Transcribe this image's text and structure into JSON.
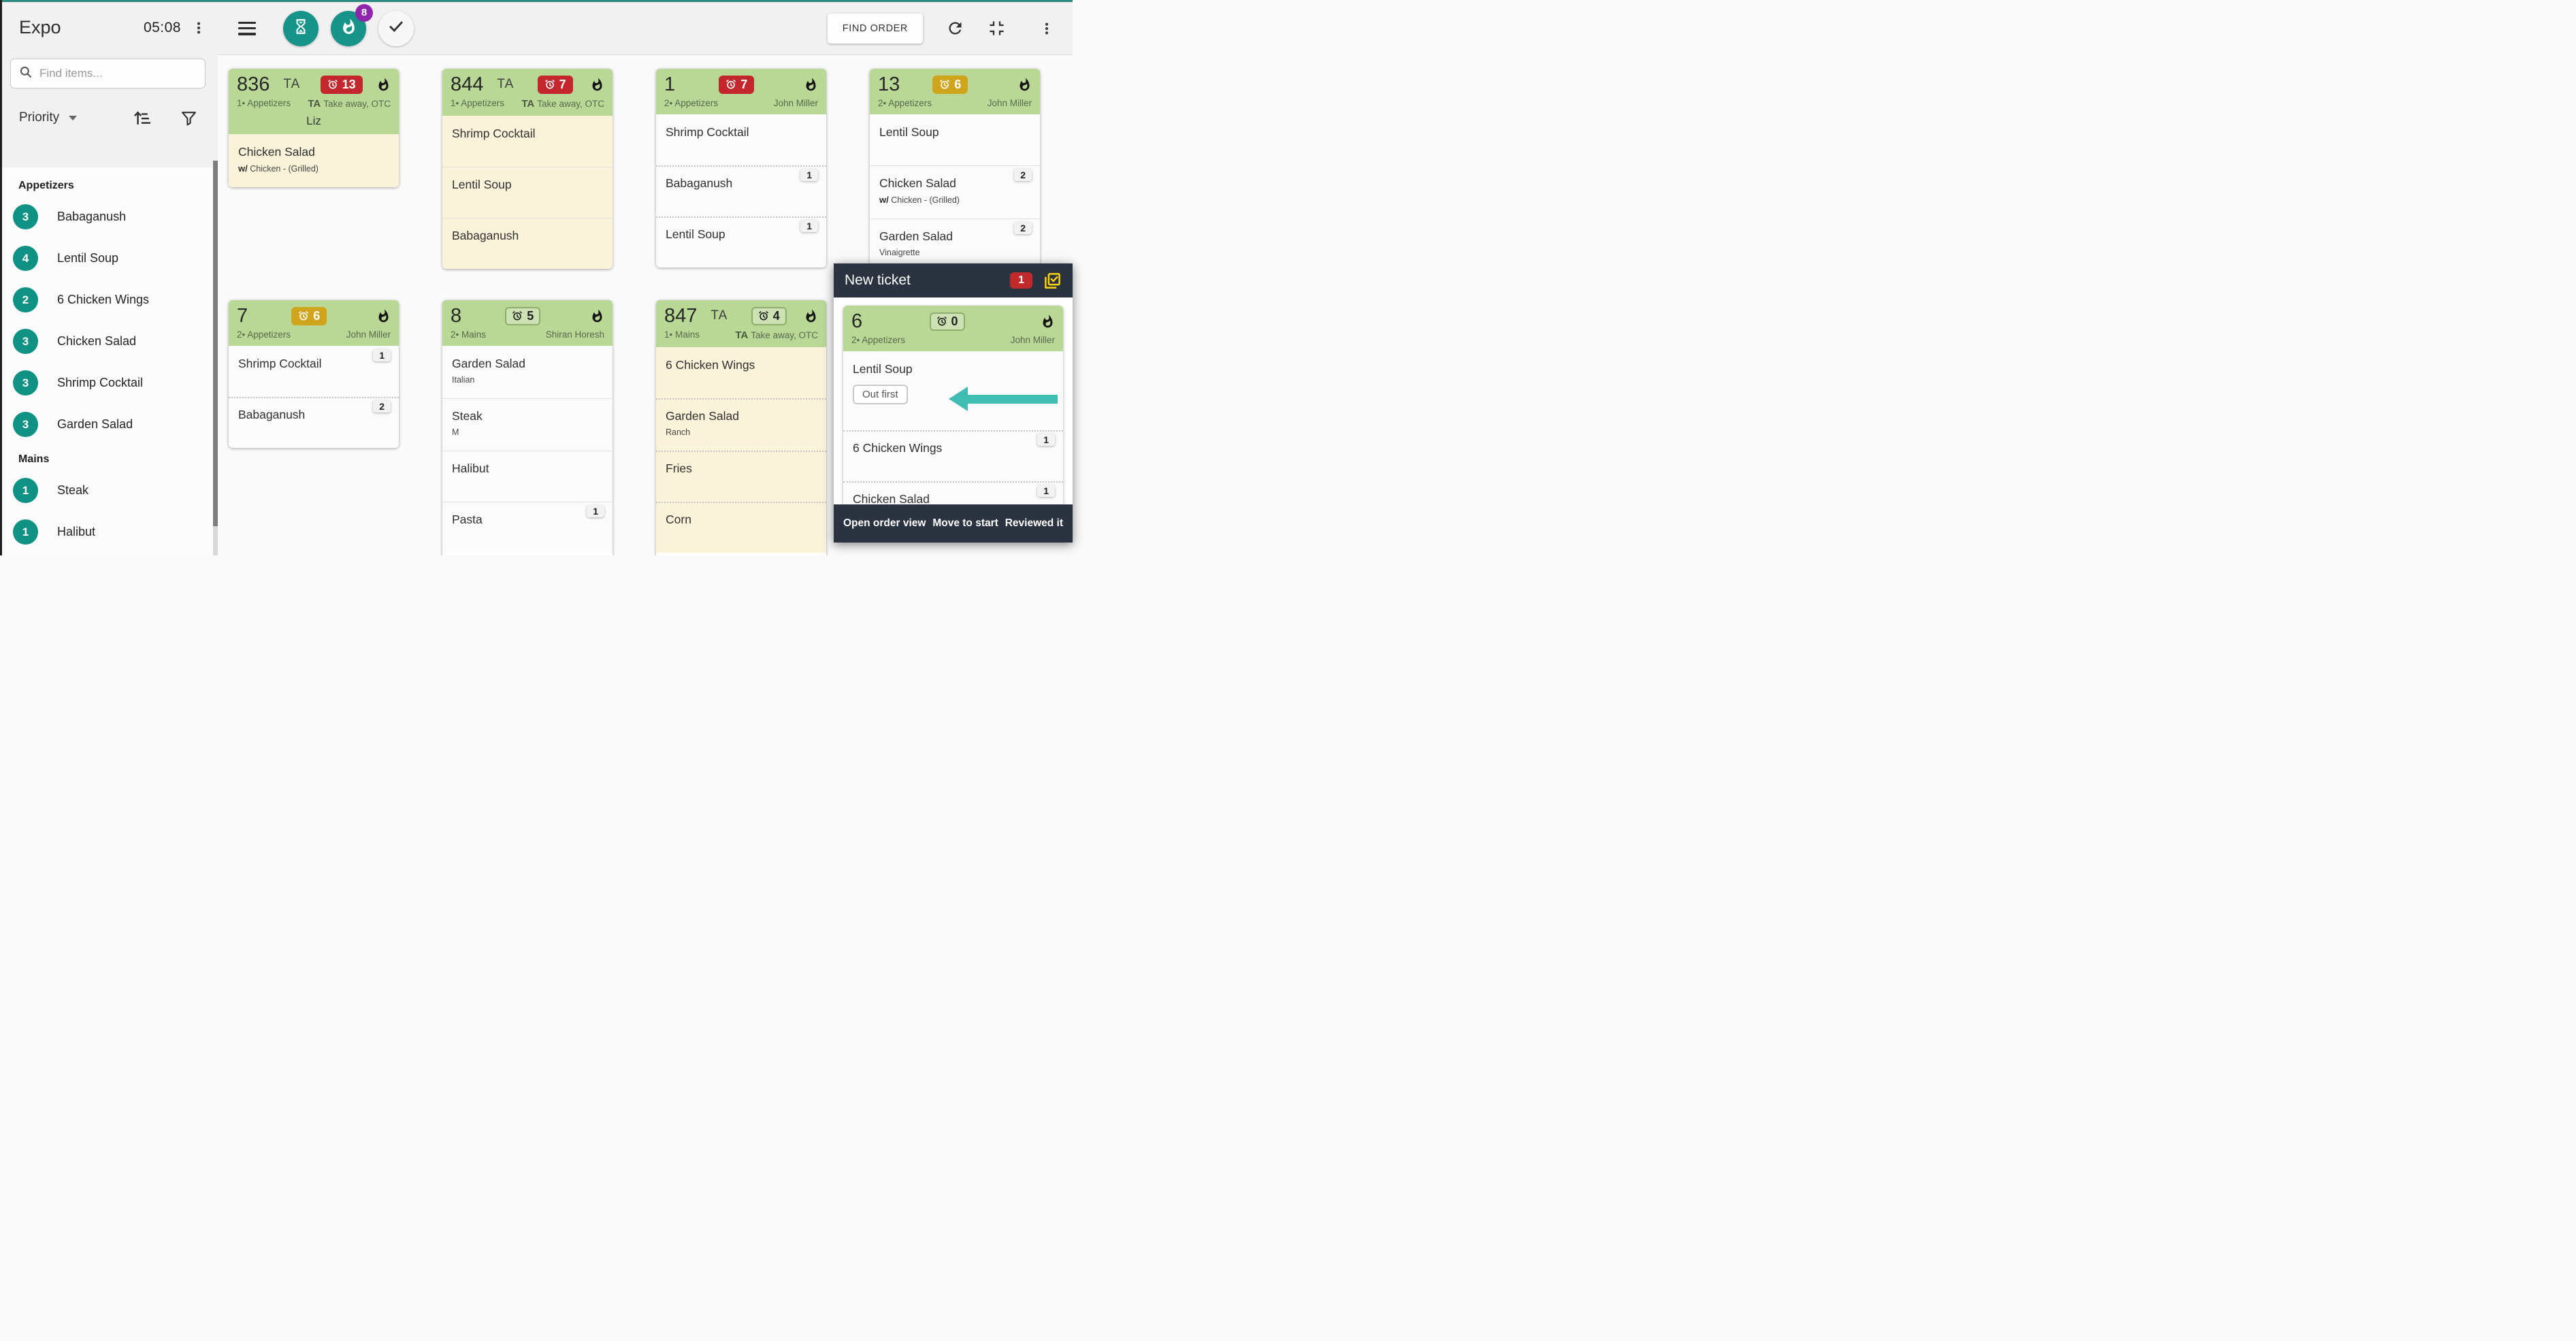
{
  "app": {
    "title": "Expo",
    "time": "05:08"
  },
  "colors": {
    "accent_teal": "#16948a",
    "top_border": "#2e8a7e",
    "arrow_teal": "#3fbdb2",
    "ticket_header_green": "#b9d795",
    "ticket_body_cream": "#faf3da",
    "timer_red": "#c3262c",
    "timer_gold": "#d0a41c",
    "panel_navy": "#2b3340",
    "panel_badge_red": "#c12a2a",
    "urgent_badge_purple": "#8f27ad",
    "check_icon_yellow": "#ffd60a"
  },
  "sidebar": {
    "search_placeholder": "Find items...",
    "sort_by": "Priority",
    "sections": [
      {
        "name": "Appetizers",
        "items": [
          {
            "count": "3",
            "label": "Babaganush"
          },
          {
            "count": "4",
            "label": "Lentil Soup"
          },
          {
            "count": "2",
            "label": "6 Chicken Wings"
          },
          {
            "count": "3",
            "label": "Chicken Salad"
          },
          {
            "count": "3",
            "label": "Shrimp Cocktail"
          },
          {
            "count": "3",
            "label": "Garden Salad"
          }
        ]
      },
      {
        "name": "Mains",
        "items": [
          {
            "count": "1",
            "label": "Steak"
          },
          {
            "count": "1",
            "label": "Halibut"
          }
        ]
      }
    ]
  },
  "toolbar": {
    "urgent_badge_count": "8",
    "find_order_label": "FIND ORDER"
  },
  "tickets": [
    {
      "id": "836",
      "ta": "TA",
      "timer": {
        "value": "13",
        "style": "red"
      },
      "course": "1• Appetizers",
      "meta_right": {
        "bold": "TA",
        "text": "Take away, OTC"
      },
      "customer": "Liz",
      "body": "cream",
      "items": [
        {
          "name": "Chicken Salad",
          "sub_bold": "w/",
          "sub": "Chicken - (Grilled)"
        }
      ]
    },
    {
      "id": "844",
      "ta": "TA",
      "timer": {
        "value": "7",
        "style": "red"
      },
      "course": "1• Appetizers",
      "meta_right": {
        "bold": "TA",
        "text": "Take away, OTC"
      },
      "body": "cream",
      "items": [
        {
          "name": "Shrimp Cocktail"
        },
        {
          "name": "Lentil Soup",
          "sep": "solid"
        },
        {
          "name": "Babaganush",
          "sep": "solid"
        }
      ]
    },
    {
      "id": "1",
      "timer": {
        "value": "7",
        "style": "red"
      },
      "course": "2• Appetizers",
      "meta_right": {
        "text": "John Miller"
      },
      "body": "white",
      "items": [
        {
          "name": "Shrimp Cocktail"
        },
        {
          "name": "Babaganush",
          "qty": "1",
          "sep": "dotted"
        },
        {
          "name": "Lentil Soup",
          "qty": "1",
          "sep": "dotted"
        }
      ]
    },
    {
      "id": "13",
      "timer": {
        "value": "6",
        "style": "gold"
      },
      "course": "2• Appetizers",
      "meta_right": {
        "text": "John Miller"
      },
      "body": "white",
      "items": [
        {
          "name": "Lentil Soup"
        },
        {
          "name": "Chicken Salad",
          "qty": "2",
          "sub_bold": "w/",
          "sub": "Chicken - (Grilled)",
          "sep": "solid"
        },
        {
          "name": "Garden Salad",
          "qty": "2",
          "sub": "Vinaigrette",
          "sep": "solid"
        }
      ]
    },
    {
      "id": "7",
      "timer": {
        "value": "6",
        "style": "gold"
      },
      "course": "2• Appetizers",
      "meta_right": {
        "text": "John Miller"
      },
      "body": "white",
      "items": [
        {
          "name": "Shrimp Cocktail",
          "qty": "1"
        },
        {
          "name": "Babaganush",
          "qty": "2",
          "sep": "dotted"
        }
      ]
    },
    {
      "id": "8",
      "timer": {
        "value": "5",
        "style": "outline"
      },
      "course": "2• Mains",
      "meta_right": {
        "text": "Shiran Horesh"
      },
      "body": "white",
      "items": [
        {
          "name": "Garden Salad",
          "sub": "Italian"
        },
        {
          "name": "Steak",
          "sub": "M",
          "sep": "solid"
        },
        {
          "name": "Halibut",
          "sep": "solid"
        },
        {
          "name": "Pasta",
          "qty": "1",
          "sep": "solid"
        }
      ]
    },
    {
      "id": "847",
      "ta": "TA",
      "timer": {
        "value": "4",
        "style": "outline"
      },
      "course": "1• Mains",
      "meta_right": {
        "bold": "TA",
        "text": "Take away, OTC"
      },
      "body": "cream",
      "items": [
        {
          "name": "6 Chicken Wings"
        },
        {
          "name": "Garden Salad",
          "sub": "Ranch",
          "sep": "dotted"
        },
        {
          "name": "Fries",
          "sep": "dotted"
        },
        {
          "name": "Corn",
          "sep": "dotted"
        }
      ]
    }
  ],
  "new_ticket_panel": {
    "title": "New ticket",
    "badge_count": "1",
    "ticket": {
      "id": "6",
      "timer": {
        "value": "0",
        "style": "outline"
      },
      "course": "2• Appetizers",
      "meta_right": {
        "text": "John Miller"
      },
      "body": "white",
      "items": [
        {
          "name": "Lentil Soup",
          "tag": "Out first",
          "arrow": true
        },
        {
          "name": "6 Chicken Wings",
          "qty": "1",
          "sep": "dotted"
        },
        {
          "name": "Chicken Salad",
          "qty": "1",
          "sep": "dotted"
        }
      ]
    },
    "actions": [
      "Open order view",
      "Move to start",
      "Reviewed it"
    ]
  }
}
